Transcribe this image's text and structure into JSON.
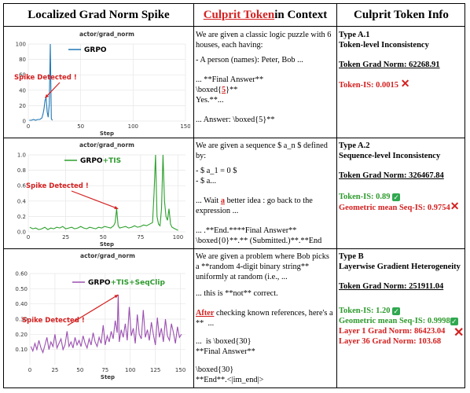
{
  "header": {
    "col1": "Localized Grad Norm Spike",
    "col2_highlight": "Culprit Token",
    "col2_rest": " in Context",
    "col3": "Culprit Token Info"
  },
  "rows": [
    {
      "context": {
        "line1": "We are given a classic logic puzzle with 6 houses, each having:",
        "line2": "- A person (names): Peter, Bob ...",
        "line3": "... **Final Answer**",
        "line4a": "\\boxed{",
        "line4b": "5",
        "line4c": "}**",
        "line5": "Yes.**...",
        "line6": "... Answer: \\boxed{5}**"
      },
      "info": {
        "type": "Type A.1",
        "subtitle": "Token-level Inconsistency",
        "grad_norm": "Token Grad Norm: 62268.91",
        "metric1": "Token-IS: 0.0015"
      }
    },
    {
      "context": {
        "line1": "We are given a sequence $ a_n $ defined by:",
        "line2": "- $ a_1 = 0 $",
        "line3": "- $ a...",
        "line4a": "... Wait ",
        "line4b": "a",
        "line4c": " better idea : go back to the expression ...",
        "line5": "... .**End.****Final Answer**",
        "line6": "\\boxed{0}**.** (Submitted.)**.**End"
      },
      "info": {
        "type": "Type A.2",
        "subtitle": "Sequence-level Inconsistency",
        "grad_norm": "Token Grad Norm: 326467.84",
        "metric1": "Token-IS: 0.89",
        "metric2": "Geometric mean Seq-IS: 0.9754"
      }
    },
    {
      "context": {
        "line1": "We are given a problem where Bob picks a **random 4-digit binary string** uniformly at random (i.e., ...",
        "line2": "... this is **not** correct.",
        "line3a": "After",
        "line3b": " checking known references, here's a **  ...",
        "line4": "...  is \\boxed{30}",
        "line5": "**Final Answer**",
        "line6": "\\boxed{30}",
        "line7": "**End**.<|im_end|>"
      },
      "info": {
        "type": "Type B",
        "subtitle": "Layerwise Gradient Heterogeneity",
        "grad_norm": "Token Grad Norm: 251911.04",
        "metric1": "Token-IS: 1.20",
        "metric2": "Geometric mean Seq-IS: 0.9998",
        "metric3": "Layer 1 Grad Norm: 86423.04",
        "metric4": "Layer 36 Grad Norm: 103.68"
      }
    }
  ],
  "chart_data": [
    {
      "type": "line",
      "title": "actor/grad_norm",
      "xlabel": "Step",
      "ylabel": "",
      "xlim": [
        0,
        150
      ],
      "ylim": [
        0,
        100
      ],
      "xticks": [
        0,
        50,
        100,
        150
      ],
      "yticks": [
        0,
        20,
        40,
        60,
        80,
        100
      ],
      "legend": "GRPO",
      "annotation": "Spike Detected !",
      "series": [
        {
          "name": "GRPO",
          "color": "#1f77b4",
          "x": [
            1,
            3,
            5,
            7,
            9,
            11,
            13,
            14,
            15,
            16,
            17,
            18,
            19,
            20,
            21,
            22,
            23
          ],
          "y": [
            1,
            1,
            2,
            1,
            2,
            2,
            4,
            9,
            16,
            27,
            30,
            12,
            5,
            22,
            100,
            3,
            1
          ]
        }
      ]
    },
    {
      "type": "line",
      "title": "actor/grad_norm",
      "xlabel": "Step",
      "ylabel": "",
      "xlim": [
        0,
        105
      ],
      "ylim": [
        0,
        1.0
      ],
      "xticks": [
        0,
        25,
        50,
        75,
        100
      ],
      "yticks": [
        0.0,
        0.2,
        0.4,
        0.6,
        0.8,
        1.0
      ],
      "legend_parts": [
        "GRPO",
        "+TIS"
      ],
      "annotation": "Spike Detected !",
      "series": [
        {
          "name": "GRPO+TIS",
          "color": "#2ca02c",
          "x": [
            1,
            3,
            5,
            7,
            9,
            11,
            13,
            15,
            17,
            19,
            21,
            23,
            25,
            27,
            29,
            31,
            33,
            35,
            37,
            39,
            41,
            43,
            45,
            47,
            49,
            51,
            53,
            55,
            57,
            58,
            59,
            60,
            61,
            63,
            65,
            67,
            69,
            71,
            73,
            75,
            77,
            79,
            81,
            83,
            84,
            85,
            86,
            87,
            88,
            89,
            90,
            91,
            92,
            93,
            94,
            95,
            96,
            97,
            98,
            99,
            100
          ],
          "y": [
            0.06,
            0.04,
            0.05,
            0.03,
            0.04,
            0.06,
            0.03,
            0.05,
            0.04,
            0.06,
            0.05,
            0.07,
            0.04,
            0.05,
            0.06,
            0.04,
            0.05,
            0.07,
            0.05,
            0.04,
            0.06,
            0.05,
            0.04,
            0.06,
            0.05,
            0.07,
            0.06,
            0.05,
            0.08,
            0.12,
            0.3,
            0.08,
            0.05,
            0.06,
            0.07,
            0.05,
            0.06,
            0.08,
            0.06,
            0.07,
            0.09,
            0.08,
            0.1,
            0.12,
            0.5,
            1.0,
            0.2,
            0.1,
            0.08,
            0.3,
            1.0,
            0.4,
            0.2,
            0.15,
            0.3,
            0.1,
            0.06,
            0.05,
            0.04,
            0.03,
            0.02
          ]
        }
      ]
    },
    {
      "type": "line",
      "title": "actor/grad_norm",
      "xlabel": "Step",
      "ylabel": "",
      "xlim": [
        0,
        155
      ],
      "ylim": [
        0,
        0.6
      ],
      "xticks": [
        0,
        25,
        50,
        75,
        100,
        125,
        150
      ],
      "yticks": [
        0.1,
        0.2,
        0.3,
        0.4,
        0.5,
        0.6
      ],
      "legend_parts": [
        "GRPO",
        "+TIS",
        "+SeqClip"
      ],
      "annotation": "Spike Detected !",
      "series": [
        {
          "name": "GRPO+TIS+SeqClip",
          "color": "#9b4fb0",
          "x": [
            1,
            3,
            5,
            7,
            9,
            11,
            13,
            15,
            17,
            19,
            21,
            23,
            25,
            27,
            29,
            31,
            33,
            35,
            37,
            39,
            41,
            43,
            45,
            47,
            49,
            51,
            53,
            55,
            57,
            59,
            61,
            63,
            65,
            67,
            69,
            71,
            73,
            75,
            77,
            79,
            81,
            83,
            85,
            87,
            88,
            89,
            91,
            93,
            95,
            97,
            99,
            101,
            103,
            105,
            107,
            109,
            111,
            113,
            115,
            117,
            119,
            121,
            123,
            125,
            127,
            129,
            131,
            133,
            135,
            137,
            139,
            141,
            143,
            145,
            147,
            149,
            151
          ],
          "y": [
            0.12,
            0.09,
            0.14,
            0.1,
            0.16,
            0.11,
            0.08,
            0.13,
            0.18,
            0.1,
            0.15,
            0.12,
            0.2,
            0.11,
            0.14,
            0.17,
            0.1,
            0.13,
            0.22,
            0.12,
            0.15,
            0.11,
            0.18,
            0.13,
            0.16,
            0.12,
            0.19,
            0.14,
            0.11,
            0.17,
            0.13,
            0.21,
            0.15,
            0.12,
            0.18,
            0.14,
            0.26,
            0.13,
            0.19,
            0.15,
            0.22,
            0.17,
            0.29,
            0.21,
            0.46,
            0.15,
            0.23,
            0.18,
            0.27,
            0.16,
            0.38,
            0.19,
            0.24,
            0.14,
            0.33,
            0.2,
            0.17,
            0.36,
            0.18,
            0.23,
            0.16,
            0.28,
            0.2,
            0.13,
            0.31,
            0.18,
            0.24,
            0.15,
            0.3,
            0.19,
            0.16,
            0.27,
            0.21,
            0.14,
            0.25,
            0.18,
            0.2
          ]
        }
      ]
    }
  ]
}
